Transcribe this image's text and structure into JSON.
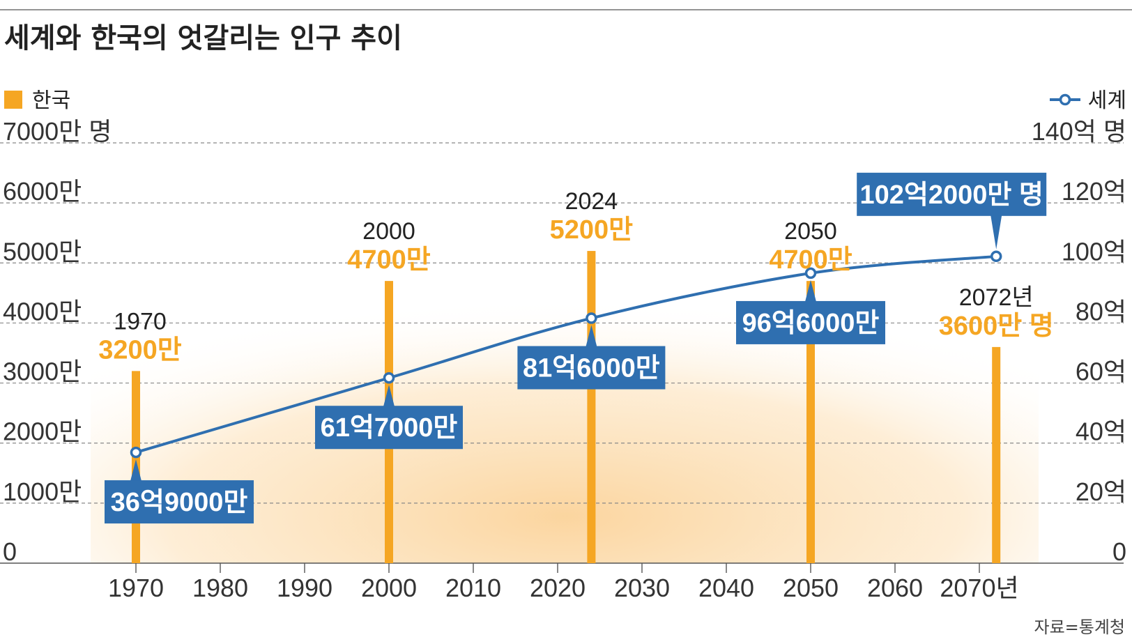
{
  "title": "세계와 한국의 엇갈리는 인구 추이",
  "source": "자료=통계청",
  "colors": {
    "korea": "#F5A623",
    "world": "#2F6FB0",
    "label_box": "#2F6FB0",
    "grid": "#888888",
    "text": "#333333",
    "glow": "#FBD9A8"
  },
  "chart_data": {
    "type": "bar+line",
    "title": "세계와 한국의 엇갈리는 인구 추이",
    "legend": {
      "korea": "한국",
      "world": "세계",
      "korea_placement": "top-left",
      "world_placement": "top-right"
    },
    "x_axis": {
      "ticks": [
        1970,
        1980,
        1990,
        2000,
        2010,
        2020,
        2030,
        2040,
        2050,
        2060,
        2070
      ],
      "tick_labels": [
        "1970",
        "1980",
        "1990",
        "2000",
        "2010",
        "2020",
        "2030",
        "2040",
        "2050",
        "2060",
        "2070년"
      ],
      "range": [
        1970,
        2072
      ]
    },
    "left_axis": {
      "unit": "만 명",
      "range": [
        0,
        7000
      ],
      "ticks": [
        0,
        1000,
        2000,
        3000,
        4000,
        5000,
        6000,
        7000
      ],
      "tick_labels": [
        "0",
        "1000만",
        "2000만",
        "3000만",
        "4000만",
        "5000만",
        "6000만",
        "7000만 명"
      ]
    },
    "right_axis": {
      "unit": "억",
      "range": [
        0,
        140
      ],
      "ticks": [
        0,
        20,
        40,
        60,
        80,
        100,
        120,
        140
      ],
      "tick_labels": [
        "0",
        "20억",
        "40억",
        "60억",
        "80억",
        "100억",
        "120억",
        "140억 명"
      ]
    },
    "korea_series": {
      "name": "한국",
      "axis": "left",
      "points": [
        {
          "x": 1970,
          "value": 3200,
          "year_label": "1970",
          "value_label": "3200만"
        },
        {
          "x": 2000,
          "value": 4700,
          "year_label": "2000",
          "value_label": "4700만"
        },
        {
          "x": 2024,
          "value": 5200,
          "year_label": "2024",
          "value_label": "5200만"
        },
        {
          "x": 2050,
          "value": 4700,
          "year_label": "2050",
          "value_label": "4700만"
        },
        {
          "x": 2072,
          "value": 3600,
          "year_label": "2072년",
          "value_label": "3600만 명"
        }
      ]
    },
    "world_series": {
      "name": "세계",
      "axis": "right",
      "points": [
        {
          "x": 1970,
          "value": 36.9,
          "label": "36억9000만"
        },
        {
          "x": 2000,
          "value": 61.7,
          "label": "61억7000만"
        },
        {
          "x": 2024,
          "value": 81.6,
          "label": "81억6000만"
        },
        {
          "x": 2050,
          "value": 96.6,
          "label": "96억6000만"
        },
        {
          "x": 2072,
          "value": 102.2,
          "label": "102억2000만 명"
        }
      ]
    }
  }
}
